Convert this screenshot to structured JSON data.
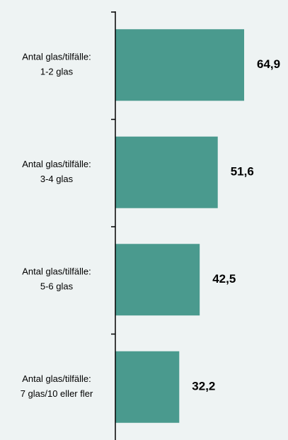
{
  "chart_data": {
    "type": "hbar",
    "categories": [
      [
        "Antal glas/tilfälle:",
        "1-2 glas"
      ],
      [
        "Antal glas/tilfälle:",
        "3-4 glas"
      ],
      [
        "Antal glas/tilfälle:",
        "5-6 glas"
      ],
      [
        "Antal glas/tilfälle:",
        "7 glas/10 eller fler"
      ]
    ],
    "values": [
      64.9,
      51.6,
      42.5,
      32.2
    ],
    "value_labels": [
      "64,9",
      "51,6",
      "42,5",
      "32,2"
    ],
    "color": "#4a9a8e",
    "xlim": [
      0,
      87
    ]
  }
}
